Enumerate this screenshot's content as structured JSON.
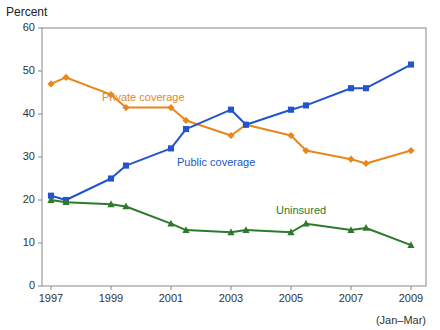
{
  "chart_data": {
    "type": "line",
    "x": [
      1997,
      1997.5,
      1999,
      1999.5,
      2001,
      2001.5,
      2003,
      2003.5,
      2005,
      2005.5,
      2007,
      2007.5,
      2009
    ],
    "series": [
      {
        "color": "#e8861a",
        "marker": "diamond",
        "values": [
          47.0,
          48.5,
          44.5,
          41.5,
          41.5,
          38.5,
          35.0,
          37.5,
          35.0,
          31.5,
          29.5,
          28.5,
          31.5
        ]
      },
      {
        "color": "#2255cc",
        "marker": "square",
        "values": [
          21.0,
          20.0,
          25.0,
          28.0,
          32.0,
          36.5,
          41.0,
          37.5,
          41.0,
          42.0,
          46.0,
          46.0,
          51.5
        ]
      },
      {
        "color": "#2d7a2d",
        "marker": "triangle",
        "values": [
          20.0,
          19.5,
          19.0,
          18.5,
          14.5,
          13.0,
          12.5,
          13.0,
          12.5,
          14.5,
          13.0,
          13.5,
          9.5
        ]
      }
    ],
    "annotations": [
      {
        "text": "Private coverage",
        "x": 1998.7,
        "y": 42.5,
        "color": "#e8861a"
      },
      {
        "text": "Public coverage",
        "x": 2001.2,
        "y": 27.5,
        "color": "#2255cc"
      },
      {
        "text": "Uninsured",
        "x": 2004.5,
        "y": 16.2,
        "color": "#2d7a2d"
      }
    ],
    "ylabel": "Percent",
    "xlabel": "(Jan–Mar)",
    "xlim": [
      1996.7,
      2009.5
    ],
    "xticks": [
      1997,
      1999,
      2001,
      2003,
      2005,
      2007,
      2009
    ],
    "ylim": [
      0,
      60
    ],
    "yticks": [
      0,
      10,
      20,
      30,
      40,
      50,
      60
    ],
    "grid": false
  }
}
